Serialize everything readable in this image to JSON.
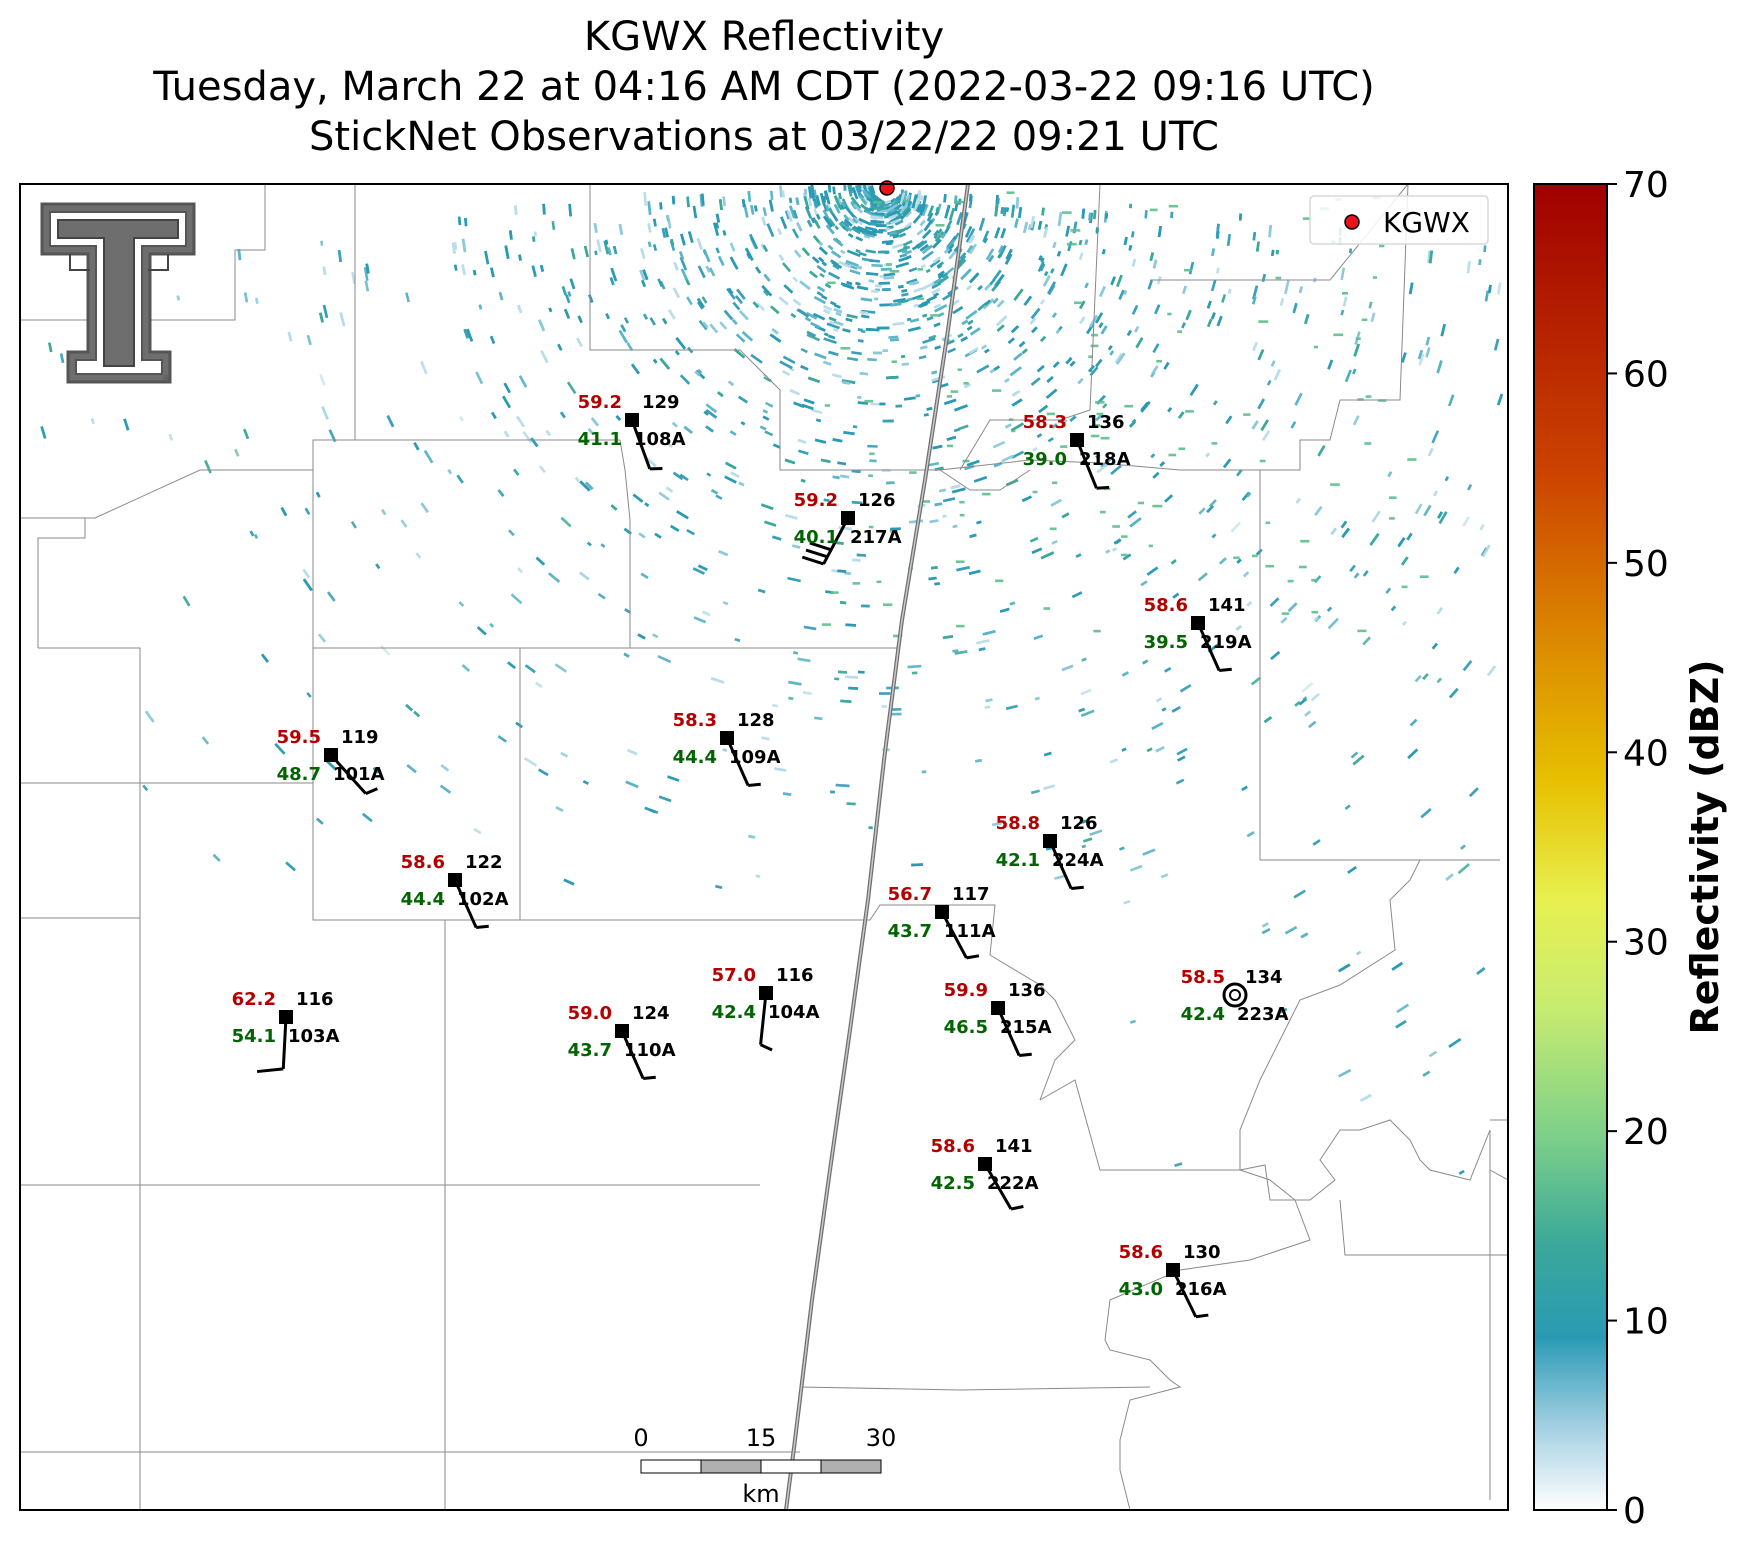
{
  "title": {
    "line1": "KGWX Reflectivity",
    "line2": "Tuesday, March 22 at 04:16 AM CDT (2022-03-22 09:16 UTC)",
    "line3": "StickNet Observations at 03/22/22 09:21 UTC"
  },
  "legend": {
    "label": "KGWX",
    "marker_color": "#e8141c"
  },
  "colorbar": {
    "label": "Reflectivity (dBZ)",
    "ticks": [
      "0",
      "10",
      "20",
      "30",
      "40",
      "50",
      "60",
      "70"
    ],
    "range": [
      0,
      70
    ],
    "colors": [
      "#ffffff",
      "#c8e0ee",
      "#2a9ab4",
      "#3aa89a",
      "#7ccf8a",
      "#e0f060",
      "#e8c000",
      "#d88000",
      "#c03000",
      "#a00000"
    ]
  },
  "scale_bar": {
    "ticks": [
      "0",
      "15",
      "30"
    ],
    "unit": "km"
  },
  "logo": {
    "name": "texas-tech-double-t-logo"
  },
  "stations": [
    {
      "id": "108A",
      "temp": "59.2",
      "dew": "41.1",
      "pressure": "129"
    },
    {
      "id": "218A",
      "temp": "58.3",
      "dew": "39.0",
      "pressure": "136"
    },
    {
      "id": "217A",
      "temp": "59.2",
      "dew": "40.1",
      "pressure": "126"
    },
    {
      "id": "219A",
      "temp": "58.6",
      "dew": "39.5",
      "pressure": "141"
    },
    {
      "id": "101A",
      "temp": "59.5",
      "dew": "48.7",
      "pressure": "119"
    },
    {
      "id": "109A",
      "temp": "58.3",
      "dew": "44.4",
      "pressure": "128"
    },
    {
      "id": "224A",
      "temp": "58.8",
      "dew": "42.1",
      "pressure": "126"
    },
    {
      "id": "102A",
      "temp": "58.6",
      "dew": "44.4",
      "pressure": "122"
    },
    {
      "id": "111A",
      "temp": "56.7",
      "dew": "43.7",
      "pressure": "117"
    },
    {
      "id": "103A",
      "temp": "62.2",
      "dew": "54.1",
      "pressure": "116"
    },
    {
      "id": "104A",
      "temp": "57.0",
      "dew": "42.4",
      "pressure": "116"
    },
    {
      "id": "215A",
      "temp": "59.9",
      "dew": "46.5",
      "pressure": "136"
    },
    {
      "id": "223A",
      "temp": "58.5",
      "dew": "42.4",
      "pressure": "134"
    },
    {
      "id": "110A",
      "temp": "59.0",
      "dew": "43.7",
      "pressure": "124"
    },
    {
      "id": "222A",
      "temp": "58.6",
      "dew": "42.5",
      "pressure": "141"
    },
    {
      "id": "216A",
      "temp": "58.6",
      "dew": "43.0",
      "pressure": "130"
    }
  ]
}
